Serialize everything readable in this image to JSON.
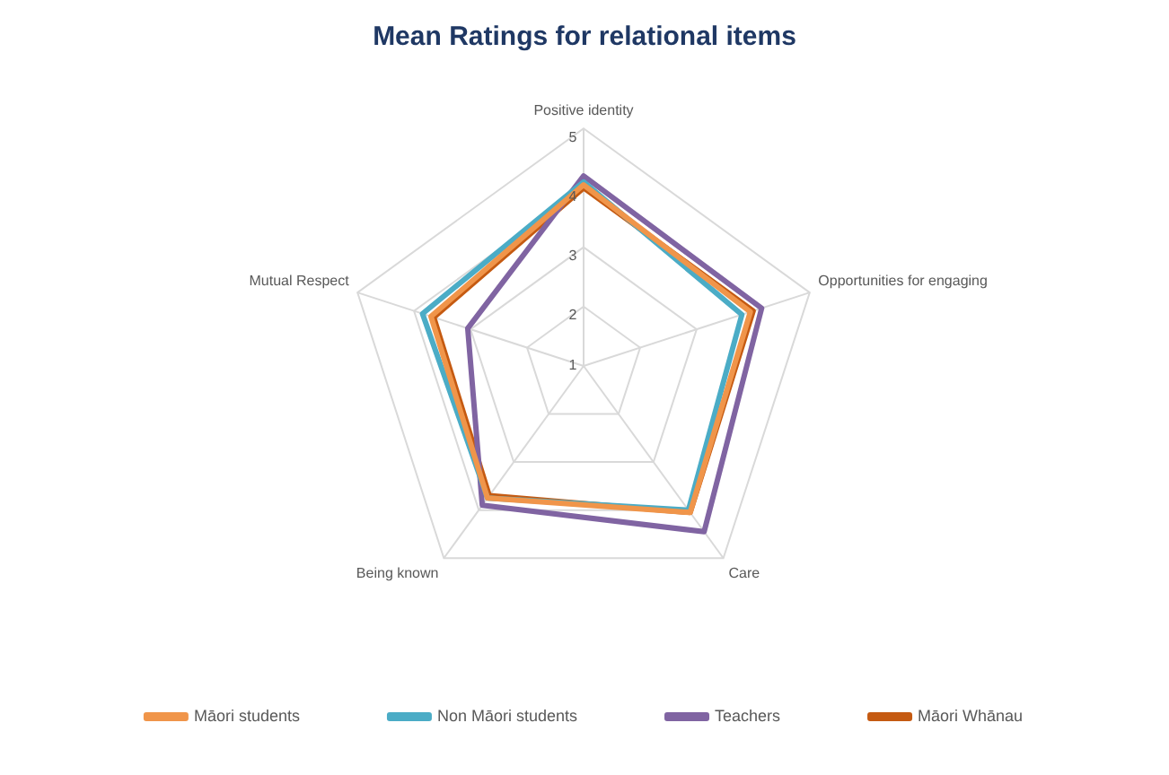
{
  "chart_data": {
    "type": "radar",
    "title": "Mean Ratings for relational items",
    "categories": [
      "Positive identity",
      "Opportunities for engaging",
      "Care",
      "Being known",
      "Mutual Respect"
    ],
    "series": [
      {
        "name": "Māori students",
        "color": "#f0954a",
        "values": [
          4.05,
          3.95,
          4.05,
          3.75,
          3.7
        ]
      },
      {
        "name": "Non Māori students",
        "color": "#4bacc6",
        "values": [
          4.1,
          3.8,
          4.0,
          3.75,
          3.85
        ]
      },
      {
        "name": "Teachers",
        "color": "#8064a2",
        "values": [
          4.2,
          4.15,
          4.45,
          3.9,
          3.05
        ]
      },
      {
        "name": "Māori Whānau",
        "color": "#c55a11",
        "values": [
          4.0,
          4.0,
          4.05,
          3.7,
          3.65
        ]
      }
    ],
    "ylim": [
      1,
      5
    ],
    "yticks": [
      1,
      2,
      3,
      4,
      5
    ],
    "grid": true,
    "legend": "bottom",
    "marker": "none"
  }
}
